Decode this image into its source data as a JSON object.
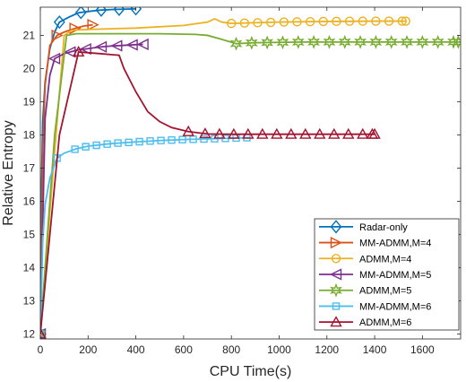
{
  "chart_data": {
    "type": "line",
    "xlabel": "CPU Time(s)",
    "ylabel": "Relative Entropy",
    "xlim": [
      0,
      1760
    ],
    "ylim": [
      11.85,
      21.85
    ],
    "xticks": [
      0,
      200,
      400,
      600,
      800,
      1000,
      1200,
      1400,
      1600
    ],
    "yticks": [
      12,
      13,
      14,
      15,
      16,
      17,
      18,
      19,
      20,
      21
    ],
    "grid": false,
    "legend_position": "bottom-right",
    "series": [
      {
        "name": "Radar-only",
        "color": "#0072BD",
        "marker": "diamond",
        "points": [
          [
            0,
            12
          ],
          [
            5,
            16.5
          ],
          [
            10,
            18.4
          ],
          [
            20,
            19.6
          ],
          [
            40,
            20.6
          ],
          [
            60,
            21.1
          ],
          [
            80,
            21.4
          ],
          [
            120,
            21.55
          ],
          [
            160,
            21.68
          ],
          [
            200,
            21.72
          ],
          [
            250,
            21.76
          ],
          [
            300,
            21.78
          ],
          [
            350,
            21.79
          ],
          [
            400,
            21.8
          ]
        ],
        "marker_x": [
          0,
          80,
          170,
          255,
          330,
          400
        ]
      },
      {
        "name": "MM-ADMM,M=4",
        "color": "#D95319",
        "marker": "triangle-right",
        "points": [
          [
            0,
            12
          ],
          [
            10,
            17.5
          ],
          [
            20,
            19.5
          ],
          [
            40,
            20.7
          ],
          [
            70,
            21.0
          ],
          [
            100,
            21.1
          ],
          [
            140,
            21.2
          ],
          [
            180,
            21.28
          ],
          [
            220,
            21.32
          ]
        ],
        "marker_x": [
          0,
          70,
          145,
          220
        ]
      },
      {
        "name": "ADMM,M=4",
        "color": "#EDB120",
        "marker": "circle",
        "points": [
          [
            0,
            12
          ],
          [
            60,
            17.5
          ],
          [
            100,
            21.0
          ],
          [
            130,
            21.15
          ],
          [
            200,
            21.18
          ],
          [
            400,
            21.22
          ],
          [
            600,
            21.3
          ],
          [
            700,
            21.4
          ],
          [
            730,
            21.5
          ],
          [
            760,
            21.4
          ],
          [
            800,
            21.36
          ],
          [
            900,
            21.38
          ],
          [
            1000,
            21.4
          ],
          [
            1200,
            21.42
          ],
          [
            1400,
            21.43
          ],
          [
            1530,
            21.43
          ]
        ],
        "marker_x": [
          0,
          800,
          855,
          910,
          965,
          1020,
          1075,
          1130,
          1185,
          1240,
          1295,
          1350,
          1405,
          1460,
          1515,
          1530
        ]
      },
      {
        "name": "MM-ADMM,M=5",
        "color": "#7E2F8E",
        "marker": "triangle-left",
        "points": [
          [
            0,
            12
          ],
          [
            20,
            18.5
          ],
          [
            40,
            19.8
          ],
          [
            60,
            20.3
          ],
          [
            100,
            20.45
          ],
          [
            150,
            20.55
          ],
          [
            200,
            20.6
          ],
          [
            250,
            20.65
          ],
          [
            300,
            20.68
          ],
          [
            350,
            20.7
          ],
          [
            400,
            20.72
          ],
          [
            430,
            20.73
          ]
        ],
        "marker_x": [
          0,
          60,
          125,
          190,
          255,
          320,
          385,
          430
        ]
      },
      {
        "name": "ADMM,M=5",
        "color": "#77AC30",
        "marker": "hexagram",
        "points": [
          [
            0,
            12
          ],
          [
            60,
            18.0
          ],
          [
            110,
            21.0
          ],
          [
            150,
            21.05
          ],
          [
            300,
            21.05
          ],
          [
            500,
            21.05
          ],
          [
            650,
            21.03
          ],
          [
            700,
            21.0
          ],
          [
            750,
            20.9
          ],
          [
            820,
            20.75
          ],
          [
            900,
            20.78
          ],
          [
            1100,
            20.8
          ],
          [
            1300,
            20.8
          ],
          [
            1500,
            20.8
          ],
          [
            1760,
            20.8
          ]
        ],
        "marker_x": [
          0,
          820,
          885,
          950,
          1015,
          1080,
          1145,
          1210,
          1275,
          1340,
          1405,
          1470,
          1535,
          1600,
          1665,
          1730,
          1750
        ]
      },
      {
        "name": "MM-ADMM,M=6",
        "color": "#4DBEEE",
        "marker": "square",
        "points": [
          [
            0,
            12
          ],
          [
            10,
            14.8
          ],
          [
            20,
            15.9
          ],
          [
            40,
            16.7
          ],
          [
            70,
            17.3
          ],
          [
            100,
            17.45
          ],
          [
            150,
            17.58
          ],
          [
            200,
            17.66
          ],
          [
            300,
            17.74
          ],
          [
            400,
            17.79
          ],
          [
            500,
            17.83
          ],
          [
            600,
            17.86
          ],
          [
            700,
            17.88
          ],
          [
            800,
            17.9
          ],
          [
            880,
            17.92
          ]
        ],
        "marker_x": [
          0,
          70,
          145,
          190,
          235,
          280,
          325,
          370,
          415,
          460,
          505,
          550,
          595,
          640,
          685,
          730,
          775,
          820,
          865
        ]
      },
      {
        "name": "ADMM,M=6",
        "color": "#A2142F",
        "marker": "triangle-up",
        "points": [
          [
            0,
            12
          ],
          [
            40,
            15.0
          ],
          [
            80,
            18.0
          ],
          [
            160,
            20.5
          ],
          [
            250,
            20.45
          ],
          [
            330,
            20.4
          ],
          [
            350,
            20.0
          ],
          [
            400,
            19.3
          ],
          [
            450,
            18.7
          ],
          [
            500,
            18.4
          ],
          [
            550,
            18.22
          ],
          [
            620,
            18.1
          ],
          [
            700,
            18.03
          ],
          [
            800,
            18.02
          ],
          [
            900,
            18.02
          ],
          [
            1000,
            18.02
          ],
          [
            1100,
            18.02
          ],
          [
            1200,
            18.02
          ],
          [
            1300,
            18.02
          ],
          [
            1400,
            18.02
          ]
        ],
        "marker_x": [
          0,
          160,
          620,
          690,
          750,
          810,
          870,
          930,
          990,
          1050,
          1110,
          1170,
          1230,
          1290,
          1350,
          1390,
          1400
        ]
      }
    ]
  }
}
